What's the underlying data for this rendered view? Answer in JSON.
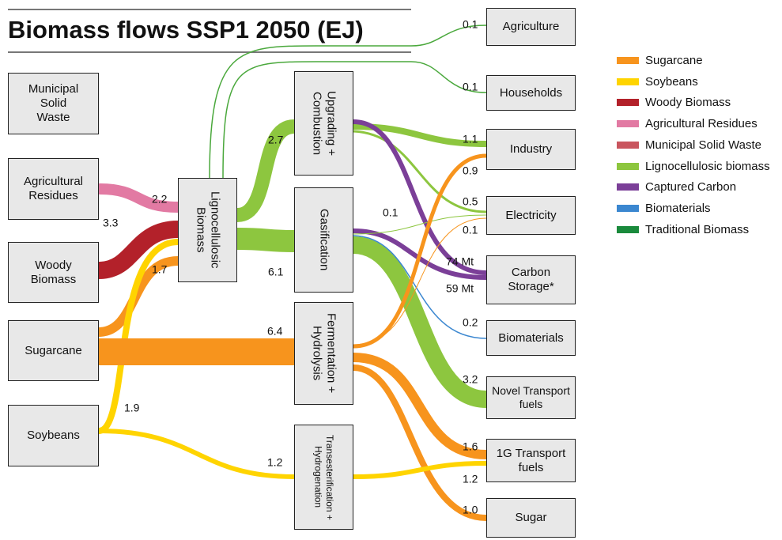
{
  "title": "Biomass flows SSP1 2050 (EJ)",
  "nodes": [
    {
      "label": "Municipal Solid Waste"
    },
    {
      "label": "Agricultural Residues"
    },
    {
      "label": "Woody Biomass"
    },
    {
      "label": "Sugarcane"
    },
    {
      "label": "Soybeans"
    },
    {
      "label": "Lignocellulosic Biomass"
    },
    {
      "label": "Upgrading + Combustion"
    },
    {
      "label": "Gasification"
    },
    {
      "label": "Fermentation + Hydrolysis"
    },
    {
      "label": "Transesterification + Hydrogenation"
    },
    {
      "label": "Agriculture"
    },
    {
      "label": "Households"
    },
    {
      "label": "Industry"
    },
    {
      "label": "Electricity"
    },
    {
      "label": "Carbon Storage*"
    },
    {
      "label": "Biomaterials"
    },
    {
      "label": "Novel Transport fuels"
    },
    {
      "label": "1G Transport fuels"
    },
    {
      "label": "Sugar"
    }
  ],
  "flows": [
    {
      "label": "2.2"
    },
    {
      "label": "3.3"
    },
    {
      "label": "1.7"
    },
    {
      "label": "1.9"
    },
    {
      "label": "6.4"
    },
    {
      "label": "1.2"
    },
    {
      "label": "2.7"
    },
    {
      "label": "6.1"
    },
    {
      "label": "0.1"
    },
    {
      "label": "0.1"
    },
    {
      "label": "1.1"
    },
    {
      "label": "0.5"
    },
    {
      "label": "74 Mt"
    },
    {
      "label": "59 Mt"
    },
    {
      "label": "3.2"
    },
    {
      "label": "0.1"
    },
    {
      "label": "0.2"
    },
    {
      "label": "0.9"
    },
    {
      "label": "0.1"
    },
    {
      "label": "1.6"
    },
    {
      "label": "1.0"
    },
    {
      "label": "1.2"
    }
  ],
  "legend": [
    {
      "label": "Sugarcane",
      "color": "#f7941d"
    },
    {
      "label": "Soybeans",
      "color": "#ffd400"
    },
    {
      "label": "Woody Biomass",
      "color": "#b3212a"
    },
    {
      "label": "Agricultural Residues",
      "color": "#e27aa3"
    },
    {
      "label": "Municipal Solid Waste",
      "color": "#c9555e"
    },
    {
      "label": "Lignocellulosic biomass",
      "color": "#8dc63f"
    },
    {
      "label": "Captured Carbon",
      "color": "#7b3f98"
    },
    {
      "label": "Biomaterials",
      "color": "#3b87d0"
    },
    {
      "label": "Traditional Biomass",
      "color": "#1a8a3c"
    }
  ]
}
